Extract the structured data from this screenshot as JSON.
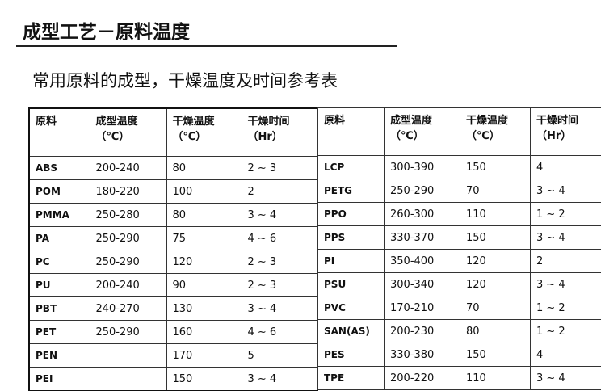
{
  "header": {
    "title": "成型工艺－原料温度",
    "subtitle": "常用原料的成型，干燥温度及时间参考表"
  },
  "tables": [
    {
      "columns": [
        [
          "原料"
        ],
        [
          "成型温度",
          "（℃）"
        ],
        [
          "干燥温度",
          "（℃）"
        ],
        [
          "干燥时间",
          "（Hr）"
        ]
      ],
      "rows": [
        [
          "ABS",
          "200-240",
          "80",
          "2 ~ 3"
        ],
        [
          "POM",
          "180-220",
          "100",
          "2"
        ],
        [
          "PMMA",
          "250-280",
          "80",
          "3 ~ 4"
        ],
        [
          "PA",
          "250-290",
          "75",
          "4 ~ 6"
        ],
        [
          "PC",
          "250-290",
          "120",
          "2 ~ 3"
        ],
        [
          "PU",
          "200-240",
          "90",
          "2 ~ 3"
        ],
        [
          "PBT",
          "240-270",
          "130",
          "3 ~ 4"
        ],
        [
          "PET",
          "250-290",
          "160",
          "4 ~ 6"
        ],
        [
          "PEN",
          null,
          "170",
          "5"
        ],
        [
          "PEI",
          null,
          "150",
          "3 ~ 4"
        ]
      ]
    },
    {
      "columns": [
        [
          "原料"
        ],
        [
          "成型温度",
          "（℃）"
        ],
        [
          "干燥温度",
          "（℃）"
        ],
        [
          "干燥时间",
          "（Hr）"
        ]
      ],
      "rows": [
        [
          "LCP",
          "300-390",
          "150",
          "4"
        ],
        [
          "PETG",
          "250-290",
          "70",
          "3 ~ 4"
        ],
        [
          "PPO",
          "260-300",
          "110",
          "1 ~ 2"
        ],
        [
          "PPS",
          "330-370",
          "150",
          "3 ~ 4"
        ],
        [
          "PI",
          "350-400",
          "120",
          "2"
        ],
        [
          "PSU",
          "300-340",
          "120",
          "3 ~ 4"
        ],
        [
          "PVC",
          "170-210",
          "70",
          "1 ~ 2"
        ],
        [
          "SAN(AS)",
          "200-230",
          "80",
          "1 ~ 2"
        ],
        [
          "PES",
          "330-380",
          "150",
          "4"
        ],
        [
          "TPE",
          "200-220",
          "110",
          "3 ~ 4"
        ]
      ]
    }
  ]
}
